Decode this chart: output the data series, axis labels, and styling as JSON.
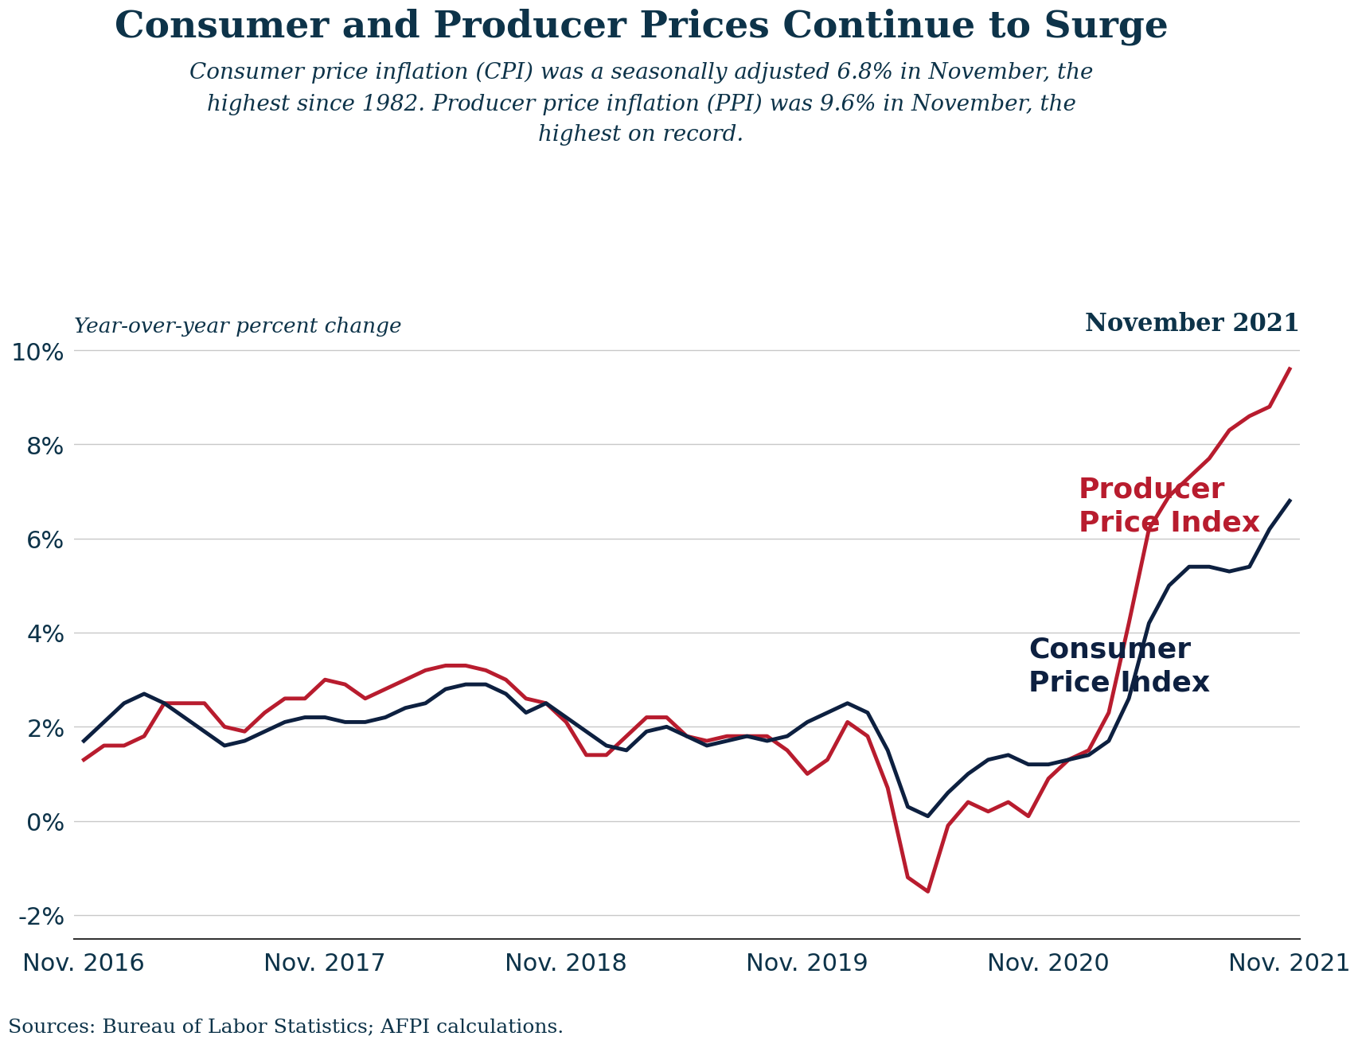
{
  "title": "Consumer and Producer Prices Continue to Surge",
  "subtitle_line1": "Consumer price inflation (CPI) was a seasonally adjusted 6.8% in November, the",
  "subtitle_line2": "highest since 1982. Producer price inflation (PPI) was 9.6% in November, the",
  "subtitle_line3": "highest on record.",
  "ylabel": "Year-over-year percent change",
  "date_label": "November 2021",
  "source": "Sources: Bureau of Labor Statistics; AFPI calculations.",
  "title_color": "#0d3349",
  "subtitle_color": "#0d3349",
  "ylabel_color": "#0d3349",
  "background_color": "#ffffff",
  "grid_color": "#c8c8c8",
  "cpi_color": "#0d2040",
  "ppi_color": "#b81c2e",
  "line_width": 3.5,
  "ylim": [
    -0.025,
    0.105
  ],
  "yticks": [
    -0.02,
    0.0,
    0.02,
    0.04,
    0.06,
    0.08,
    0.1
  ],
  "cpi_label": "Consumer\nPrice Index",
  "ppi_label": "Producer\nPrice Index",
  "cpi": [
    0.017,
    0.021,
    0.025,
    0.027,
    0.025,
    0.022,
    0.019,
    0.016,
    0.017,
    0.019,
    0.021,
    0.022,
    0.022,
    0.021,
    0.021,
    0.022,
    0.024,
    0.025,
    0.028,
    0.029,
    0.029,
    0.027,
    0.023,
    0.025,
    0.022,
    0.019,
    0.016,
    0.015,
    0.019,
    0.02,
    0.018,
    0.016,
    0.017,
    0.018,
    0.017,
    0.018,
    0.021,
    0.023,
    0.025,
    0.023,
    0.015,
    0.003,
    0.001,
    0.006,
    0.01,
    0.013,
    0.014,
    0.012,
    0.012,
    0.013,
    0.014,
    0.017,
    0.026,
    0.042,
    0.05,
    0.054,
    0.054,
    0.053,
    0.054,
    0.062,
    0.068
  ],
  "ppi": [
    0.013,
    0.016,
    0.016,
    0.018,
    0.025,
    0.025,
    0.025,
    0.02,
    0.019,
    0.023,
    0.026,
    0.026,
    0.03,
    0.029,
    0.026,
    0.028,
    0.03,
    0.032,
    0.033,
    0.033,
    0.032,
    0.03,
    0.026,
    0.025,
    0.021,
    0.014,
    0.014,
    0.018,
    0.022,
    0.022,
    0.018,
    0.017,
    0.018,
    0.018,
    0.018,
    0.015,
    0.01,
    0.013,
    0.021,
    0.018,
    0.007,
    -0.012,
    -0.015,
    -0.001,
    0.004,
    0.002,
    0.004,
    0.001,
    0.009,
    0.013,
    0.015,
    0.023,
    0.042,
    0.062,
    0.069,
    0.073,
    0.077,
    0.083,
    0.086,
    0.088,
    0.096
  ],
  "xtick_positions": [
    0,
    12,
    24,
    36,
    48,
    60
  ],
  "xtick_labels": [
    "Nov. 2016",
    "Nov. 2017",
    "Nov. 2018",
    "Nov. 2019",
    "Nov. 2020",
    "Nov. 2021"
  ]
}
